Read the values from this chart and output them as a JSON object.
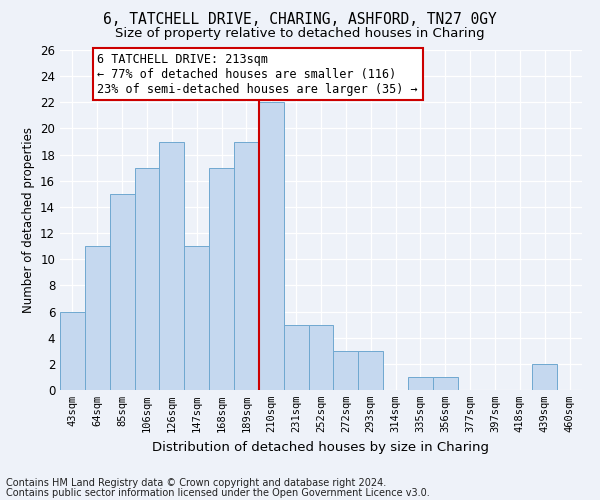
{
  "title1": "6, TATCHELL DRIVE, CHARING, ASHFORD, TN27 0GY",
  "title2": "Size of property relative to detached houses in Charing",
  "xlabel": "Distribution of detached houses by size in Charing",
  "ylabel": "Number of detached properties",
  "footnote1": "Contains HM Land Registry data © Crown copyright and database right 2024.",
  "footnote2": "Contains public sector information licensed under the Open Government Licence v3.0.",
  "bar_labels": [
    "43sqm",
    "64sqm",
    "85sqm",
    "106sqm",
    "126sqm",
    "147sqm",
    "168sqm",
    "189sqm",
    "210sqm",
    "231sqm",
    "252sqm",
    "272sqm",
    "293sqm",
    "314sqm",
    "335sqm",
    "356sqm",
    "377sqm",
    "397sqm",
    "418sqm",
    "439sqm",
    "460sqm"
  ],
  "bar_values": [
    6,
    11,
    15,
    17,
    19,
    11,
    17,
    19,
    22,
    5,
    5,
    3,
    3,
    0,
    1,
    1,
    0,
    0,
    0,
    2,
    0
  ],
  "bar_color": "#c5d8ef",
  "bar_edge_color": "#6fa8d0",
  "red_line_bar_index": 8,
  "highlight_line_color": "#cc0000",
  "annotation_title": "6 TATCHELL DRIVE: 213sqm",
  "annotation_line1": "← 77% of detached houses are smaller (116)",
  "annotation_line2": "23% of semi-detached houses are larger (35) →",
  "annotation_box_color": "white",
  "annotation_box_edge": "#cc0000",
  "ylim": [
    0,
    26
  ],
  "yticks": [
    0,
    2,
    4,
    6,
    8,
    10,
    12,
    14,
    16,
    18,
    20,
    22,
    24,
    26
  ],
  "background_color": "#eef2f9",
  "plot_bg_color": "#eef2f9",
  "grid_color": "white",
  "title1_fontsize": 10.5,
  "title2_fontsize": 9.5,
  "xlabel_fontsize": 9.5,
  "ylabel_fontsize": 8.5,
  "footnote_fontsize": 7
}
